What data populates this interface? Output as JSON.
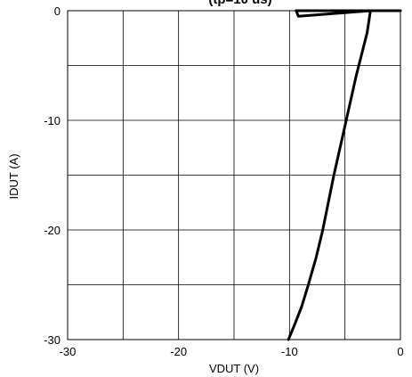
{
  "chart_data": {
    "type": "line",
    "title_visible_fragment": "(tp=10 us)",
    "xlabel": "VDUT (V)",
    "ylabel": "IDUT (A)",
    "xlim": [
      -30,
      0
    ],
    "ylim": [
      -30,
      0
    ],
    "x_ticks": [
      -30,
      -20,
      -10,
      0
    ],
    "x_tick_labels": [
      "-30",
      "-20",
      "-10",
      "0"
    ],
    "y_ticks": [
      0,
      -10,
      -20,
      -30
    ],
    "y_tick_labels": [
      "0",
      "-10",
      "-20",
      "-30"
    ],
    "grid": true,
    "grid_step": 5,
    "line_color": "#000000",
    "series": [
      {
        "x": [
          0.0,
          -9.4,
          -9.2,
          -2.7,
          -3.0,
          -4.0,
          -5.0,
          -6.0,
          -7.0,
          -7.6,
          -8.3,
          -8.9,
          -9.6,
          -10.1
        ],
        "y": [
          0.0,
          0.0,
          -0.5,
          0.0,
          -2.0,
          -6.0,
          -10.5,
          -15.0,
          -20.0,
          -22.5,
          -25.0,
          -27.0,
          -28.8,
          -30.0
        ]
      }
    ]
  }
}
